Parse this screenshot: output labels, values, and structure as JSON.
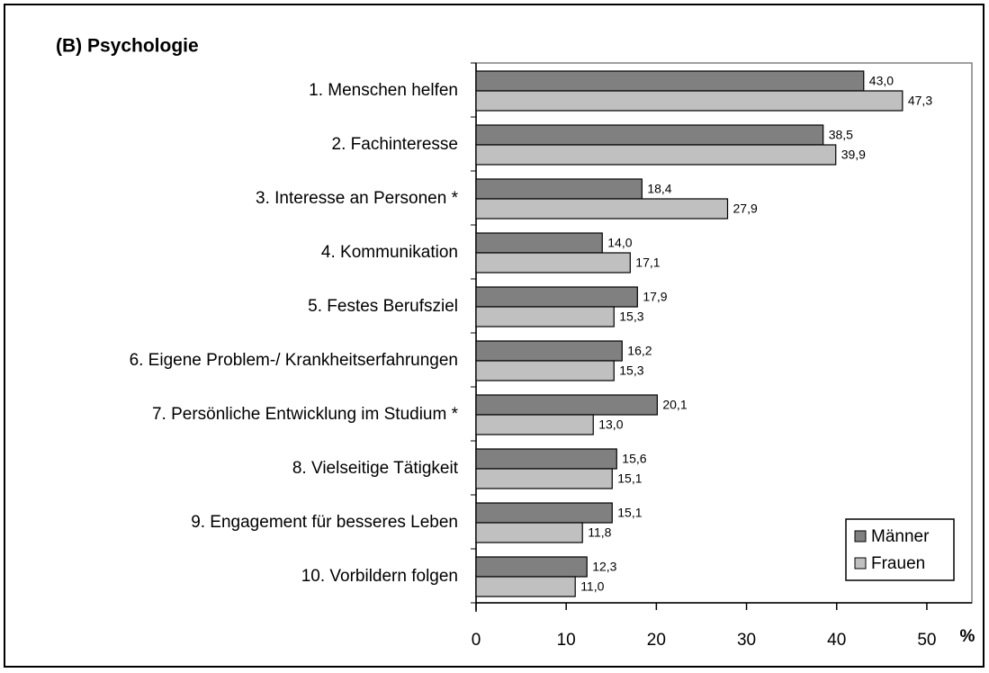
{
  "chart_data": {
    "type": "barh",
    "title": "(B) Psychologie",
    "xlabel": "%",
    "categories": [
      "1. Menschen helfen",
      "2. Fachinteresse",
      "3. Interesse an Personen *",
      "4. Kommunikation",
      "5. Festes Berufsziel",
      "6. Eigene Problem-/ Krankheitserfahrungen",
      "7. Persönliche Entwicklung im Studium *",
      "8. Vielseitige Tätigkeit",
      "9. Engagement für besseres Leben",
      "10. Vorbildern folgen"
    ],
    "series": [
      {
        "name": "Männer",
        "color": "#808080",
        "values": [
          43.0,
          38.5,
          18.4,
          14.0,
          17.9,
          16.2,
          20.1,
          15.6,
          15.1,
          12.3
        ],
        "value_labels": [
          "43,0",
          "38,5",
          "18,4",
          "14,0",
          "17,9",
          "16,2",
          "20,1",
          "15,6",
          "15,1",
          "12,3"
        ]
      },
      {
        "name": "Frauen",
        "color": "#c0c0c0",
        "values": [
          47.3,
          39.9,
          27.9,
          17.1,
          15.3,
          15.3,
          13.0,
          15.1,
          11.8,
          11.0
        ],
        "value_labels": [
          "47,3",
          "39,9",
          "27,9",
          "17,1",
          "15,3",
          "15,3",
          "13,0",
          "15,1",
          "11,8",
          "11,0"
        ]
      }
    ],
    "xlim": [
      0,
      55
    ],
    "xticks": [
      0,
      10,
      20,
      30,
      40,
      50
    ],
    "legend": "lower right"
  }
}
